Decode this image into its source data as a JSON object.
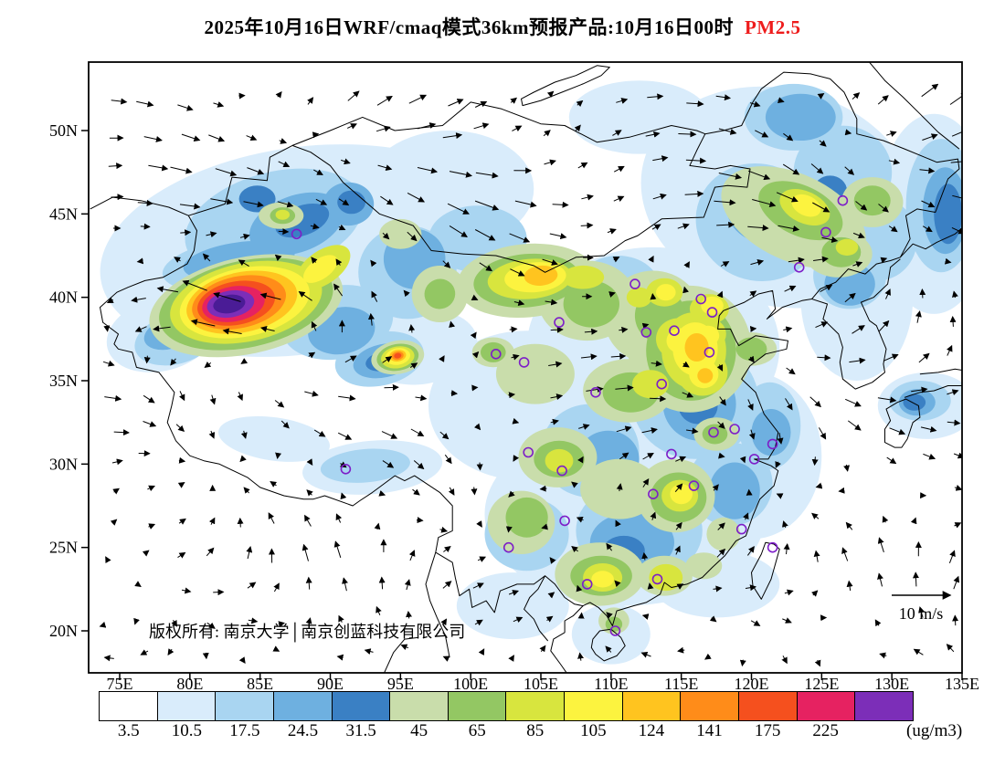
{
  "title": {
    "main": "2025年10月16日WRF/cmaq模式36km预报产品:10月16日00时",
    "species": "PM2.5",
    "species_color": "#ee1c1c"
  },
  "map": {
    "copyright": "版权所有: 南京大学│南京创蓝科技有限公司",
    "wind_ref_label": "10 m/s",
    "lat_ticks": [
      {
        "label": "50N",
        "value": 50
      },
      {
        "label": "45N",
        "value": 45
      },
      {
        "label": "40N",
        "value": 40
      },
      {
        "label": "35N",
        "value": 35
      },
      {
        "label": "30N",
        "value": 30
      },
      {
        "label": "25N",
        "value": 25
      },
      {
        "label": "20N",
        "value": 20
      }
    ],
    "lon_ticks": [
      {
        "label": "75E",
        "value": 75
      },
      {
        "label": "80E",
        "value": 80
      },
      {
        "label": "85E",
        "value": 85
      },
      {
        "label": "90E",
        "value": 90
      },
      {
        "label": "95E",
        "value": 95
      },
      {
        "label": "100E",
        "value": 100
      },
      {
        "label": "105E",
        "value": 105
      },
      {
        "label": "110E",
        "value": 110
      },
      {
        "label": "115E",
        "value": 115
      },
      {
        "label": "120E",
        "value": 120
      },
      {
        "label": "125E",
        "value": 125
      },
      {
        "label": "130E",
        "value": 130
      },
      {
        "label": "135E",
        "value": 135
      }
    ]
  },
  "colorbar": {
    "unit": "(ug/m3)",
    "labels": [
      "3.5",
      "10.5",
      "17.5",
      "24.5",
      "31.5",
      "45",
      "65",
      "85",
      "105",
      "124",
      "141",
      "175",
      "225"
    ],
    "colors": [
      "#FFFFFF",
      "#D9ECFB",
      "#A9D5F1",
      "#6EB0E0",
      "#3A80C4",
      "#C9DDAB",
      "#93C763",
      "#D8E53E",
      "#FCF33F",
      "#FFC41F",
      "#FF8C19",
      "#F5501E",
      "#E62261",
      "#7C2EB8"
    ]
  },
  "chart_data": {
    "type": "heatmap",
    "title": "2025年10月16日WRF/cmaq模式36km预报产品:10月16日00时 PM2.5",
    "species": "PM2.5",
    "unit": "ug/m3",
    "legend_position": "bottom",
    "grid": false,
    "domain": {
      "lon_range": [
        72.8,
        135.0
      ],
      "lat_range": [
        17.5,
        54.1
      ]
    },
    "levels": [
      3.5,
      10.5,
      17.5,
      24.5,
      31.5,
      45,
      65,
      85,
      105,
      124,
      141,
      175,
      225
    ],
    "palette": [
      "#FFFFFF",
      "#D9ECFB",
      "#A9D5F1",
      "#6EB0E0",
      "#3A80C4",
      "#C9DDAB",
      "#93C763",
      "#D8E53E",
      "#FCF33F",
      "#FFC41F",
      "#FF8C19",
      "#F5501E",
      "#E62261",
      "#7C2EB8"
    ],
    "extreme_color": "#4A1C96",
    "max_region": {
      "lon": 82.8,
      "lat": 39.6,
      "value": ">225"
    },
    "wind_reference_ms": 10,
    "city_marker_color": "#7D1EC8",
    "city_markers": [
      [
        87.6,
        43.8
      ],
      [
        91.1,
        29.7
      ],
      [
        101.8,
        36.6
      ],
      [
        103.8,
        36.1
      ],
      [
        106.3,
        38.5
      ],
      [
        108.9,
        34.3
      ],
      [
        112.5,
        37.9
      ],
      [
        111.7,
        40.8
      ],
      [
        114.5,
        38.0
      ],
      [
        116.4,
        39.9
      ],
      [
        117.2,
        39.1
      ],
      [
        117.0,
        36.7
      ],
      [
        113.6,
        34.8
      ],
      [
        114.3,
        30.6
      ],
      [
        117.3,
        31.9
      ],
      [
        118.8,
        32.1
      ],
      [
        121.5,
        31.2
      ],
      [
        120.2,
        30.3
      ],
      [
        115.9,
        28.7
      ],
      [
        113.0,
        28.2
      ],
      [
        104.1,
        30.7
      ],
      [
        106.5,
        29.6
      ],
      [
        106.7,
        26.6
      ],
      [
        102.7,
        25.0
      ],
      [
        108.3,
        22.8
      ],
      [
        113.3,
        23.1
      ],
      [
        110.3,
        20.0
      ],
      [
        119.3,
        26.1
      ],
      [
        123.4,
        41.8
      ],
      [
        125.3,
        43.9
      ],
      [
        126.5,
        45.8
      ],
      [
        121.5,
        25.0
      ]
    ],
    "contours": [
      [
        88,
        42.8,
        14.5,
        6.2,
        -8,
        1
      ],
      [
        122,
        46,
        10,
        6.5,
        15,
        1
      ],
      [
        113,
        37,
        9,
        6,
        0,
        1
      ],
      [
        104,
        33.5,
        7,
        4.5,
        0,
        1
      ],
      [
        111,
        27,
        10,
        5.5,
        0,
        1
      ],
      [
        120,
        30.5,
        5,
        5,
        0,
        1
      ],
      [
        127.5,
        40,
        4,
        5,
        0,
        1
      ],
      [
        133,
        45,
        4,
        6,
        0,
        1
      ],
      [
        98.5,
        46.5,
        6,
        3.5,
        0,
        1
      ],
      [
        93,
        29.8,
        5,
        1.6,
        -5,
        1
      ],
      [
        86,
        31.5,
        4,
        1.3,
        8,
        1
      ],
      [
        132.5,
        33.5,
        3.5,
        2,
        0,
        1
      ],
      [
        112,
        50.8,
        5,
        2.2,
        0,
        1
      ],
      [
        103,
        21.5,
        4,
        2,
        0,
        1
      ],
      [
        117.5,
        22.8,
        4.5,
        2,
        0,
        1
      ],
      [
        96.5,
        37,
        4,
        2.2,
        -10,
        1
      ],
      [
        110,
        19.8,
        2.8,
        1.8,
        0,
        1
      ],
      [
        78,
        37.8,
        4,
        2.2,
        -15,
        1
      ],
      [
        86,
        44.5,
        6.5,
        3,
        -15,
        2
      ],
      [
        83.5,
        42,
        5.5,
        1.6,
        -8,
        2
      ],
      [
        90.5,
        38.5,
        4,
        2.2,
        -10,
        2
      ],
      [
        95.5,
        41.5,
        3.5,
        2.8,
        0,
        2
      ],
      [
        100.5,
        43.5,
        3.5,
        2,
        0,
        2
      ],
      [
        93.5,
        36.3,
        3.2,
        1.6,
        -12,
        2
      ],
      [
        120.5,
        44.5,
        4.5,
        3.5,
        20,
        2
      ],
      [
        126.5,
        47.5,
        3.5,
        2.8,
        0,
        2
      ],
      [
        129,
        43.5,
        2.8,
        2.5,
        0,
        2
      ],
      [
        116,
        33.8,
        4.5,
        3.5,
        0,
        2
      ],
      [
        108.5,
        30.8,
        3.5,
        2.8,
        0,
        2
      ],
      [
        112,
        26,
        4.5,
        3,
        0,
        2
      ],
      [
        104,
        25.8,
        3,
        2.2,
        0,
        2
      ],
      [
        118.5,
        28.8,
        3,
        2.5,
        0,
        2
      ],
      [
        121.3,
        32.3,
        2.2,
        2.6,
        0,
        2
      ],
      [
        127,
        41.3,
        2.6,
        2,
        0,
        2
      ],
      [
        133.5,
        45.5,
        2.5,
        4,
        0,
        2
      ],
      [
        92.5,
        29.9,
        3.2,
        1,
        -5,
        2
      ],
      [
        110.5,
        40.5,
        3,
        2,
        0,
        2
      ],
      [
        132,
        33.8,
        2.2,
        1.2,
        0,
        2
      ],
      [
        123,
        50.8,
        3.5,
        2,
        0,
        2
      ],
      [
        79,
        37.5,
        3,
        1.5,
        -15,
        2
      ],
      [
        87.6,
        44.4,
        3.5,
        1.7,
        -20,
        3
      ],
      [
        91.3,
        45.6,
        1.8,
        1.3,
        0,
        3
      ],
      [
        83.5,
        42.2,
        4,
        1.1,
        -8,
        3
      ],
      [
        90.8,
        38,
        2.4,
        1.4,
        -10,
        3
      ],
      [
        96,
        42.3,
        2.2,
        1.8,
        0,
        3
      ],
      [
        93.8,
        36.2,
        2.2,
        1,
        -12,
        3
      ],
      [
        120.8,
        45.3,
        2.6,
        2,
        20,
        3
      ],
      [
        123.5,
        50.8,
        2.5,
        1.4,
        0,
        3
      ],
      [
        116.3,
        33.6,
        2.6,
        2.2,
        0,
        3
      ],
      [
        109.8,
        30.3,
        2.2,
        1.7,
        0,
        3
      ],
      [
        111.5,
        25.3,
        3,
        1.8,
        0,
        3
      ],
      [
        118.8,
        28.4,
        1.8,
        1.7,
        0,
        3
      ],
      [
        121.4,
        31.9,
        1.4,
        1.4,
        0,
        3
      ],
      [
        133.8,
        45.2,
        1.6,
        2.6,
        0,
        3
      ],
      [
        127,
        40.8,
        1.8,
        1.3,
        0,
        3
      ],
      [
        131.8,
        33.7,
        1.3,
        0.8,
        0,
        3
      ],
      [
        78.5,
        37.8,
        1.8,
        0.9,
        -15,
        3
      ],
      [
        88,
        44.6,
        2,
        0.9,
        -20,
        4
      ],
      [
        84.8,
        45.9,
        1.3,
        0.8,
        0,
        4
      ],
      [
        91.5,
        45.7,
        1,
        0.7,
        0,
        4
      ],
      [
        93.9,
        36.2,
        1.4,
        0.6,
        -12,
        4
      ],
      [
        125.6,
        46.4,
        1.2,
        0.9,
        0,
        4
      ],
      [
        116.2,
        33.5,
        1.4,
        1.1,
        0,
        4
      ],
      [
        110.9,
        24.8,
        1.5,
        0.9,
        0,
        4
      ],
      [
        134,
        45,
        1,
        1.8,
        0,
        4
      ],
      [
        131.6,
        33.7,
        0.8,
        0.5,
        0,
        4
      ],
      [
        121.5,
        45.9,
        1.2,
        0.8,
        0,
        4
      ],
      [
        123,
        44.8,
        5.5,
        2.6,
        25,
        5
      ],
      [
        128.6,
        45.7,
        2.2,
        1.5,
        0,
        5
      ],
      [
        126.2,
        42.6,
        2.4,
        1.4,
        0,
        5
      ],
      [
        104,
        41,
        5,
        2.2,
        -5,
        5
      ],
      [
        97.8,
        40.2,
        2,
        1.7,
        -20,
        5
      ],
      [
        108.3,
        39.8,
        3.5,
        2.4,
        0,
        5
      ],
      [
        113,
        38.8,
        3.5,
        2.8,
        0,
        5
      ],
      [
        115.6,
        36.9,
        4.4,
        3.8,
        0,
        5
      ],
      [
        111.2,
        34.4,
        3.2,
        1.9,
        0,
        5
      ],
      [
        104.6,
        35.4,
        2.8,
        1.8,
        0,
        5
      ],
      [
        106.2,
        30.4,
        2.8,
        1.8,
        0,
        5
      ],
      [
        110.6,
        28.5,
        2.8,
        1.8,
        0,
        5
      ],
      [
        114.6,
        28.1,
        2.8,
        2.2,
        0,
        5
      ],
      [
        109.2,
        23.4,
        3.2,
        1.9,
        0,
        5
      ],
      [
        113.8,
        23.3,
        2,
        1.2,
        0,
        5
      ],
      [
        103.6,
        26.5,
        2.4,
        1.9,
        0,
        5
      ],
      [
        84,
        39.5,
        7,
        2.9,
        -12,
        5
      ],
      [
        86.5,
        44.9,
        1.6,
        0.8,
        0,
        5
      ],
      [
        94.8,
        36.4,
        1.9,
        1,
        -10,
        5
      ],
      [
        101.6,
        36.7,
        1.5,
        0.9,
        0,
        5
      ],
      [
        120,
        36.9,
        1.8,
        1,
        0,
        5
      ],
      [
        117.5,
        31.8,
        1.6,
        1,
        0,
        5
      ],
      [
        110.2,
        20.6,
        1.1,
        0.8,
        0,
        5
      ],
      [
        95,
        43.8,
        1.5,
        0.9,
        0,
        5
      ],
      [
        116.6,
        23.9,
        1.3,
        0.8,
        0,
        5
      ],
      [
        118,
        25.8,
        1.2,
        1,
        0,
        5
      ],
      [
        123.5,
        45.2,
        3.2,
        1.5,
        25,
        6
      ],
      [
        128.6,
        45.8,
        1.3,
        0.9,
        0,
        6
      ],
      [
        126.4,
        42.7,
        1.4,
        0.9,
        0,
        6
      ],
      [
        104,
        41,
        3.8,
        1.6,
        -5,
        6
      ],
      [
        108.6,
        39.6,
        2,
        1.4,
        0,
        6
      ],
      [
        115.7,
        36.8,
        3.2,
        3,
        0,
        6
      ],
      [
        113.5,
        38.9,
        1.8,
        1.6,
        0,
        6
      ],
      [
        111.4,
        34.3,
        2,
        1.2,
        0,
        6
      ],
      [
        106.3,
        30.3,
        1.8,
        1.1,
        0,
        6
      ],
      [
        114.8,
        28,
        2,
        1.5,
        0,
        6
      ],
      [
        109.3,
        23.3,
        2.2,
        1.2,
        0,
        6
      ],
      [
        104,
        26.8,
        1.5,
        1.2,
        0,
        6
      ],
      [
        84,
        39.6,
        6.3,
        2.6,
        -12,
        6
      ],
      [
        94.8,
        36.4,
        1.5,
        0.8,
        -10,
        6
      ],
      [
        120,
        36.9,
        1.1,
        0.7,
        0,
        6
      ],
      [
        117.4,
        31.8,
        0.9,
        0.6,
        0,
        6
      ],
      [
        110.2,
        20.4,
        0.6,
        0.45,
        0,
        6
      ],
      [
        86.6,
        44.9,
        0.9,
        0.5,
        0,
        6
      ],
      [
        101.6,
        36.7,
        0.9,
        0.6,
        0,
        6
      ],
      [
        97.8,
        40.2,
        1.1,
        0.9,
        -20,
        6
      ],
      [
        84,
        39.7,
        5.5,
        2.35,
        -12,
        7
      ],
      [
        104.2,
        41.1,
        3,
        1.2,
        -5,
        7
      ],
      [
        115.9,
        36.8,
        2.3,
        2.3,
        0,
        7
      ],
      [
        123.8,
        45.4,
        1.9,
        0.95,
        25,
        7
      ],
      [
        94.8,
        36.4,
        1.2,
        0.65,
        -10,
        7
      ],
      [
        114.9,
        28.1,
        1.3,
        0.95,
        0,
        7
      ],
      [
        109.4,
        23.2,
        1.4,
        0.85,
        0,
        7
      ],
      [
        106.3,
        30.2,
        1,
        0.7,
        0,
        7
      ],
      [
        113.9,
        23.2,
        1.2,
        0.8,
        0,
        7
      ],
      [
        113.8,
        40.3,
        1.3,
        0.85,
        0,
        7
      ],
      [
        117,
        39.3,
        1.4,
        0.9,
        0,
        7
      ],
      [
        114.8,
        37.5,
        1.6,
        1.25,
        0,
        7
      ],
      [
        116.5,
        35.5,
        1.8,
        1.4,
        0,
        7
      ],
      [
        112.8,
        34.8,
        1.3,
        0.85,
        0,
        7
      ],
      [
        86.6,
        44.95,
        0.5,
        0.3,
        0,
        7
      ],
      [
        89.5,
        41.8,
        2.2,
        1,
        -35,
        7
      ],
      [
        116.8,
        37.8,
        1.4,
        1,
        0,
        7
      ],
      [
        112,
        40,
        0.9,
        0.6,
        0,
        7
      ],
      [
        108,
        41.2,
        1.5,
        0.7,
        0,
        7
      ],
      [
        126.8,
        43,
        0.8,
        0.5,
        0,
        7
      ],
      [
        83.9,
        39.7,
        4.7,
        2.05,
        -12,
        8
      ],
      [
        104.6,
        41.2,
        2.2,
        0.9,
        -5,
        8
      ],
      [
        116,
        36.9,
        1.6,
        1.6,
        0,
        8
      ],
      [
        94.8,
        36.45,
        0.9,
        0.5,
        -10,
        8
      ],
      [
        123.9,
        45.5,
        1.1,
        0.6,
        25,
        8
      ],
      [
        115,
        28.2,
        0.8,
        0.6,
        0,
        8
      ],
      [
        109.4,
        23.1,
        0.8,
        0.5,
        0,
        8
      ],
      [
        113.9,
        40.3,
        0.7,
        0.5,
        0,
        8
      ],
      [
        114.9,
        37.4,
        0.95,
        0.75,
        0,
        8
      ],
      [
        116.6,
        35.4,
        1.05,
        0.85,
        0,
        8
      ],
      [
        117.2,
        39.5,
        0.8,
        0.55,
        0,
        8
      ],
      [
        89.3,
        41.7,
        1.4,
        0.6,
        -35,
        8
      ],
      [
        116.9,
        37.7,
        0.8,
        0.6,
        0,
        8
      ],
      [
        83.7,
        39.7,
        4,
        1.8,
        -12,
        9
      ],
      [
        116.1,
        37,
        0.85,
        0.85,
        0,
        9
      ],
      [
        94.8,
        36.5,
        0.6,
        0.35,
        -10,
        9
      ],
      [
        105,
        41.3,
        1.2,
        0.6,
        -5,
        9
      ],
      [
        116.7,
        35.3,
        0.55,
        0.45,
        0,
        9
      ],
      [
        83.5,
        39.7,
        3.4,
        1.55,
        -12,
        10
      ],
      [
        94.8,
        36.5,
        0.42,
        0.25,
        -10,
        10
      ],
      [
        83.3,
        39.65,
        2.8,
        1.3,
        -11,
        11
      ],
      [
        94.8,
        36.5,
        0.27,
        0.16,
        -10,
        11
      ],
      [
        83.1,
        39.6,
        2.25,
        1.05,
        -10,
        12
      ],
      [
        82.9,
        39.6,
        1.7,
        0.8,
        -10,
        13
      ],
      [
        82.8,
        39.6,
        1.15,
        0.55,
        -10,
        13,
        "#4A1C96"
      ]
    ]
  }
}
